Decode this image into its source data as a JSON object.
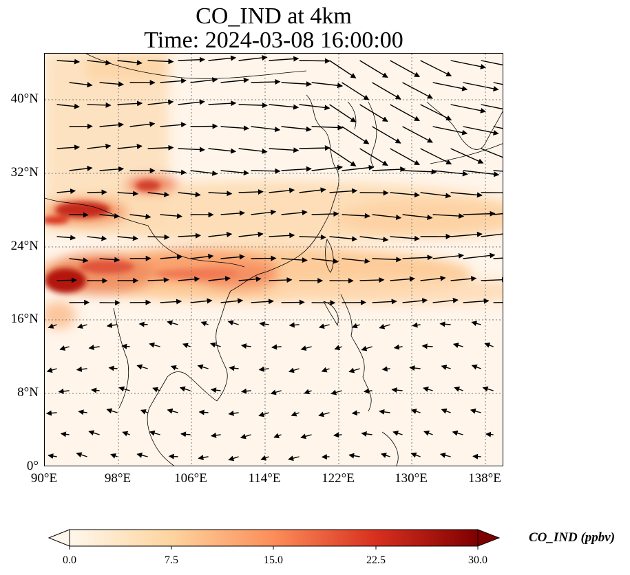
{
  "title": {
    "line1": "CO_IND at 4km",
    "line2": "Time: 2024-03-08 16:00:00"
  },
  "map": {
    "variable": "CO_IND",
    "height": "4km",
    "lon_range": [
      90,
      140
    ],
    "lat_range": [
      0,
      45
    ],
    "gridlines": true,
    "y_ticks": [
      "40°N",
      "32°N",
      "24°N",
      "16°N",
      "8°N",
      "0°"
    ],
    "x_ticks": [
      "90°E",
      "98°E",
      "106°E",
      "114°E",
      "122°E",
      "130°E",
      "138°E"
    ],
    "overlay": "wind vectors",
    "colormap": "OrRd"
  },
  "colorbar": {
    "label": "CO_IND (ppbv)",
    "ticks": [
      "0.0",
      "7.5",
      "15.0",
      "22.5",
      "30.0"
    ],
    "range": [
      0,
      30
    ],
    "extend": "both",
    "colors": [
      "#fff7ec",
      "#fdd49e",
      "#fc8d59",
      "#d7301f",
      "#7f0000"
    ]
  }
}
